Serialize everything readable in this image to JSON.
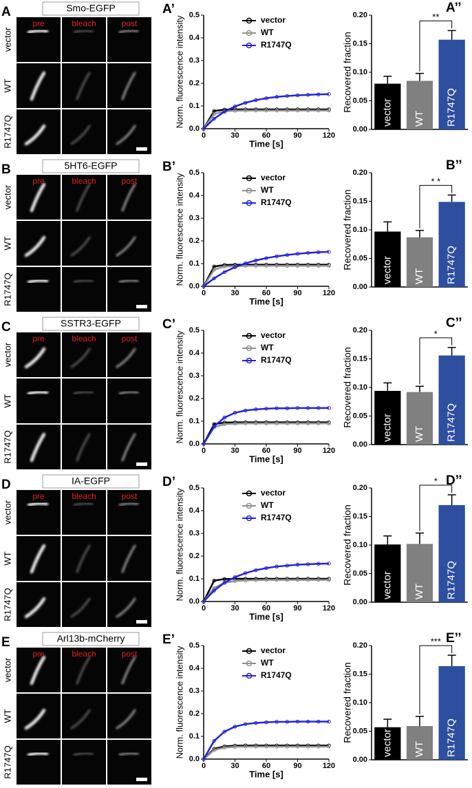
{
  "image_panels": [
    {
      "label": "A",
      "title": "Smo-EGFP",
      "columns": [
        "pre",
        "bleach",
        "post"
      ],
      "rows": [
        "vector",
        "WT",
        "R1747Q"
      ]
    },
    {
      "label": "B",
      "title": "5HT6-EGFP",
      "columns": [
        "pre",
        "bleach",
        "post"
      ],
      "rows": [
        "vector",
        "WT",
        "R1747Q"
      ]
    },
    {
      "label": "C",
      "title": "SSTR3-EGFP",
      "columns": [
        "pre",
        "bleach",
        "post"
      ],
      "rows": [
        "vector",
        "WT",
        "R1747Q"
      ]
    },
    {
      "label": "D",
      "title": "IA-EGFP",
      "columns": [
        "pre",
        "bleach",
        "post"
      ],
      "rows": [
        "vector",
        "WT",
        "R1747Q"
      ]
    },
    {
      "label": "E",
      "title": "Arl13b-mCherry",
      "columns": [
        "pre",
        "bleach",
        "post"
      ],
      "rows": [
        "vector",
        "WT",
        "R1747Q"
      ]
    }
  ],
  "chart_data": [
    {
      "type": "line",
      "panel_label": "A’",
      "x_label": "Time [s]",
      "y_label": "Norm. fluorescence intensity",
      "x": [
        0,
        10,
        20,
        30,
        40,
        50,
        60,
        70,
        80,
        90,
        100,
        110,
        120
      ],
      "xlim": [
        0,
        120
      ],
      "xticks": [
        0,
        30,
        60,
        90,
        120
      ],
      "ylim": [
        0,
        0.5
      ],
      "yticks": [
        {
          "value": 0,
          "label": "0.0"
        },
        0.1,
        0.2,
        0.3,
        0.4,
        0.5
      ],
      "legend": "upper-center",
      "series": [
        {
          "name": "vector",
          "color": "#000000",
          "values": [
            0,
            0.078,
            0.084,
            0.085,
            0.085,
            0.085,
            0.085,
            0.085,
            0.085,
            0.085,
            0.085,
            0.085,
            0.085
          ]
        },
        {
          "name": "WT",
          "color": "#909090",
          "values": [
            0,
            0.065,
            0.077,
            0.079,
            0.08,
            0.08,
            0.08,
            0.08,
            0.08,
            0.08,
            0.08,
            0.08,
            0.08
          ]
        },
        {
          "name": "R1747Q",
          "color": "#2222dd",
          "values": [
            0,
            0.044,
            0.075,
            0.098,
            0.114,
            0.126,
            0.134,
            0.14,
            0.144,
            0.147,
            0.149,
            0.151,
            0.152
          ]
        }
      ]
    },
    {
      "type": "bar",
      "panel_label": "A’’",
      "y_label": "Recovered fraction",
      "categories": [
        "vector",
        "WT",
        "R1747Q"
      ],
      "values": [
        0.08,
        0.085,
        0.157
      ],
      "errors": [
        0.013,
        0.013,
        0.016
      ],
      "colors": [
        "#000000",
        "#808080",
        "#2e4fa0"
      ],
      "ylim": [
        0,
        0.2
      ],
      "yticks": [
        {
          "value": 0,
          "label": "0.00"
        },
        0.05,
        {
          "value": 0.1,
          "label": "0.10"
        },
        0.15,
        {
          "value": 0.2,
          "label": "0.20"
        }
      ],
      "significance": "**"
    },
    {
      "type": "line",
      "panel_label": "B’",
      "x_label": "Time [s]",
      "y_label": "Norm. fluorescence intensity",
      "x": [
        0,
        10,
        20,
        30,
        40,
        50,
        60,
        70,
        80,
        90,
        100,
        110,
        120
      ],
      "xlim": [
        0,
        120
      ],
      "xticks": [
        0,
        30,
        60,
        90,
        120
      ],
      "ylim": [
        0,
        0.5
      ],
      "yticks": [
        {
          "value": 0,
          "label": "0.0"
        },
        0.1,
        0.2,
        0.3,
        0.4,
        0.5
      ],
      "legend": "upper-center",
      "series": [
        {
          "name": "vector",
          "color": "#000000",
          "values": [
            0,
            0.087,
            0.094,
            0.095,
            0.095,
            0.095,
            0.095,
            0.095,
            0.095,
            0.095,
            0.095,
            0.095,
            0.095
          ]
        },
        {
          "name": "WT",
          "color": "#909090",
          "values": [
            0,
            0.073,
            0.087,
            0.089,
            0.09,
            0.09,
            0.09,
            0.09,
            0.09,
            0.09,
            0.09,
            0.09,
            0.09
          ]
        },
        {
          "name": "R1747Q",
          "color": "#2222dd",
          "values": [
            0,
            0.035,
            0.063,
            0.084,
            0.101,
            0.114,
            0.124,
            0.132,
            0.138,
            0.143,
            0.147,
            0.15,
            0.152
          ]
        }
      ]
    },
    {
      "type": "bar",
      "panel_label": "B’’",
      "y_label": "Recovered fraction",
      "categories": [
        "vector",
        "WT",
        "R1747Q"
      ],
      "values": [
        0.097,
        0.087,
        0.149
      ],
      "errors": [
        0.017,
        0.012,
        0.012
      ],
      "colors": [
        "#000000",
        "#808080",
        "#2e4fa0"
      ],
      "ylim": [
        0,
        0.2
      ],
      "yticks": [
        {
          "value": 0,
          "label": "0.00"
        },
        0.05,
        {
          "value": 0.1,
          "label": "0.10"
        },
        0.15,
        {
          "value": 0.2,
          "label": "0.20"
        }
      ],
      "significance": "* *"
    },
    {
      "type": "line",
      "panel_label": "C’",
      "x_label": "Time [s]",
      "y_label": "Norm. fluorescence intensity",
      "x": [
        0,
        10,
        20,
        30,
        40,
        50,
        60,
        70,
        80,
        90,
        100,
        110,
        120
      ],
      "xlim": [
        0,
        120
      ],
      "xticks": [
        0,
        30,
        60,
        90,
        120
      ],
      "ylim": [
        0,
        0.5
      ],
      "yticks": [
        {
          "value": 0,
          "label": "0.0"
        },
        0.1,
        0.2,
        0.3,
        0.4,
        0.5
      ],
      "legend": "upper-center",
      "series": [
        {
          "name": "vector",
          "color": "#000000",
          "values": [
            0,
            0.087,
            0.094,
            0.095,
            0.095,
            0.095,
            0.095,
            0.095,
            0.095,
            0.095,
            0.095,
            0.095,
            0.095
          ]
        },
        {
          "name": "WT",
          "color": "#909090",
          "values": [
            0,
            0.073,
            0.087,
            0.089,
            0.09,
            0.09,
            0.09,
            0.09,
            0.09,
            0.09,
            0.09,
            0.09,
            0.09
          ]
        },
        {
          "name": "R1747Q",
          "color": "#2222dd",
          "values": [
            0,
            0.077,
            0.116,
            0.137,
            0.147,
            0.152,
            0.155,
            0.157,
            0.157,
            0.158,
            0.158,
            0.158,
            0.158
          ]
        }
      ]
    },
    {
      "type": "bar",
      "panel_label": "C’’",
      "y_label": "Recovered fraction",
      "categories": [
        "vector",
        "WT",
        "R1747Q"
      ],
      "values": [
        0.094,
        0.092,
        0.156
      ],
      "errors": [
        0.014,
        0.01,
        0.014
      ],
      "colors": [
        "#000000",
        "#808080",
        "#2e4fa0"
      ],
      "ylim": [
        0,
        0.2
      ],
      "yticks": [
        {
          "value": 0,
          "label": "0.00"
        },
        0.05,
        {
          "value": 0.1,
          "label": "0.10"
        },
        0.15,
        {
          "value": 0.2,
          "label": "0.20"
        }
      ],
      "significance": "*"
    },
    {
      "type": "line",
      "panel_label": "D’",
      "x_label": "Time [s]",
      "y_label": "Norm. fluorescence intensity",
      "x": [
        0,
        10,
        20,
        30,
        40,
        50,
        60,
        70,
        80,
        90,
        100,
        110,
        120
      ],
      "xlim": [
        0,
        120
      ],
      "xticks": [
        0,
        30,
        60,
        90,
        120
      ],
      "ylim": [
        0,
        0.5
      ],
      "yticks": [
        {
          "value": 0,
          "label": "0.0"
        },
        0.1,
        0.2,
        0.3,
        0.4,
        0.5
      ],
      "legend": "upper-center",
      "series": [
        {
          "name": "vector",
          "color": "#000000",
          "values": [
            0,
            0.092,
            0.099,
            0.1,
            0.1,
            0.1,
            0.1,
            0.1,
            0.1,
            0.1,
            0.1,
            0.1,
            0.1
          ]
        },
        {
          "name": "WT",
          "color": "#909090",
          "values": [
            0,
            0.06,
            0.082,
            0.09,
            0.093,
            0.094,
            0.095,
            0.095,
            0.095,
            0.095,
            0.095,
            0.095,
            0.095
          ]
        },
        {
          "name": "R1747Q",
          "color": "#2222dd",
          "values": [
            0,
            0.048,
            0.083,
            0.107,
            0.125,
            0.138,
            0.147,
            0.154,
            0.158,
            0.162,
            0.164,
            0.166,
            0.167
          ]
        }
      ]
    },
    {
      "type": "bar",
      "panel_label": "D’’",
      "y_label": "Recovered fraction",
      "categories": [
        "vector",
        "WT",
        "R1747Q"
      ],
      "values": [
        0.101,
        0.102,
        0.17
      ],
      "errors": [
        0.015,
        0.019,
        0.018
      ],
      "colors": [
        "#000000",
        "#808080",
        "#2e4fa0"
      ],
      "ylim": [
        0,
        0.2
      ],
      "yticks": [
        {
          "value": 0,
          "label": "0.00"
        },
        0.05,
        {
          "value": 0.1,
          "label": "0.10"
        },
        0.15,
        {
          "value": 0.2,
          "label": "0.20"
        }
      ],
      "significance": "*"
    },
    {
      "type": "line",
      "panel_label": "E’",
      "x_label": "Time [s]",
      "y_label": "Norm. fluorescence intensity",
      "x": [
        0,
        10,
        20,
        30,
        40,
        50,
        60,
        70,
        80,
        90,
        100,
        110,
        120
      ],
      "xlim": [
        0,
        120
      ],
      "xticks": [
        0,
        30,
        60,
        90,
        120
      ],
      "ylim": [
        0,
        0.5
      ],
      "yticks": [
        {
          "value": 0,
          "label": "0.0"
        },
        0.1,
        0.2,
        0.3,
        0.4,
        0.5
      ],
      "legend": "upper-center",
      "series": [
        {
          "name": "vector",
          "color": "#000000",
          "values": [
            0,
            0.045,
            0.056,
            0.059,
            0.06,
            0.06,
            0.06,
            0.06,
            0.06,
            0.06,
            0.06,
            0.06,
            0.06
          ]
        },
        {
          "name": "WT",
          "color": "#909090",
          "values": [
            0,
            0.04,
            0.051,
            0.054,
            0.055,
            0.055,
            0.055,
            0.055,
            0.055,
            0.055,
            0.055,
            0.055,
            0.055
          ]
        },
        {
          "name": "R1747Q",
          "color": "#2222dd",
          "values": [
            0,
            0.08,
            0.121,
            0.143,
            0.154,
            0.159,
            0.162,
            0.164,
            0.164,
            0.165,
            0.165,
            0.165,
            0.165
          ]
        }
      ]
    },
    {
      "type": "bar",
      "panel_label": "E’’",
      "y_label": "Recovered fraction",
      "categories": [
        "vector",
        "WT",
        "R1747Q"
      ],
      "values": [
        0.057,
        0.059,
        0.164
      ],
      "errors": [
        0.014,
        0.017,
        0.019
      ],
      "colors": [
        "#000000",
        "#808080",
        "#2e4fa0"
      ],
      "ylim": [
        0,
        0.2
      ],
      "yticks": [
        {
          "value": 0,
          "label": "0.00"
        },
        0.05,
        {
          "value": 0.1,
          "label": "0.10"
        },
        0.15,
        {
          "value": 0.2,
          "label": "0.20"
        }
      ],
      "significance": "***"
    }
  ]
}
